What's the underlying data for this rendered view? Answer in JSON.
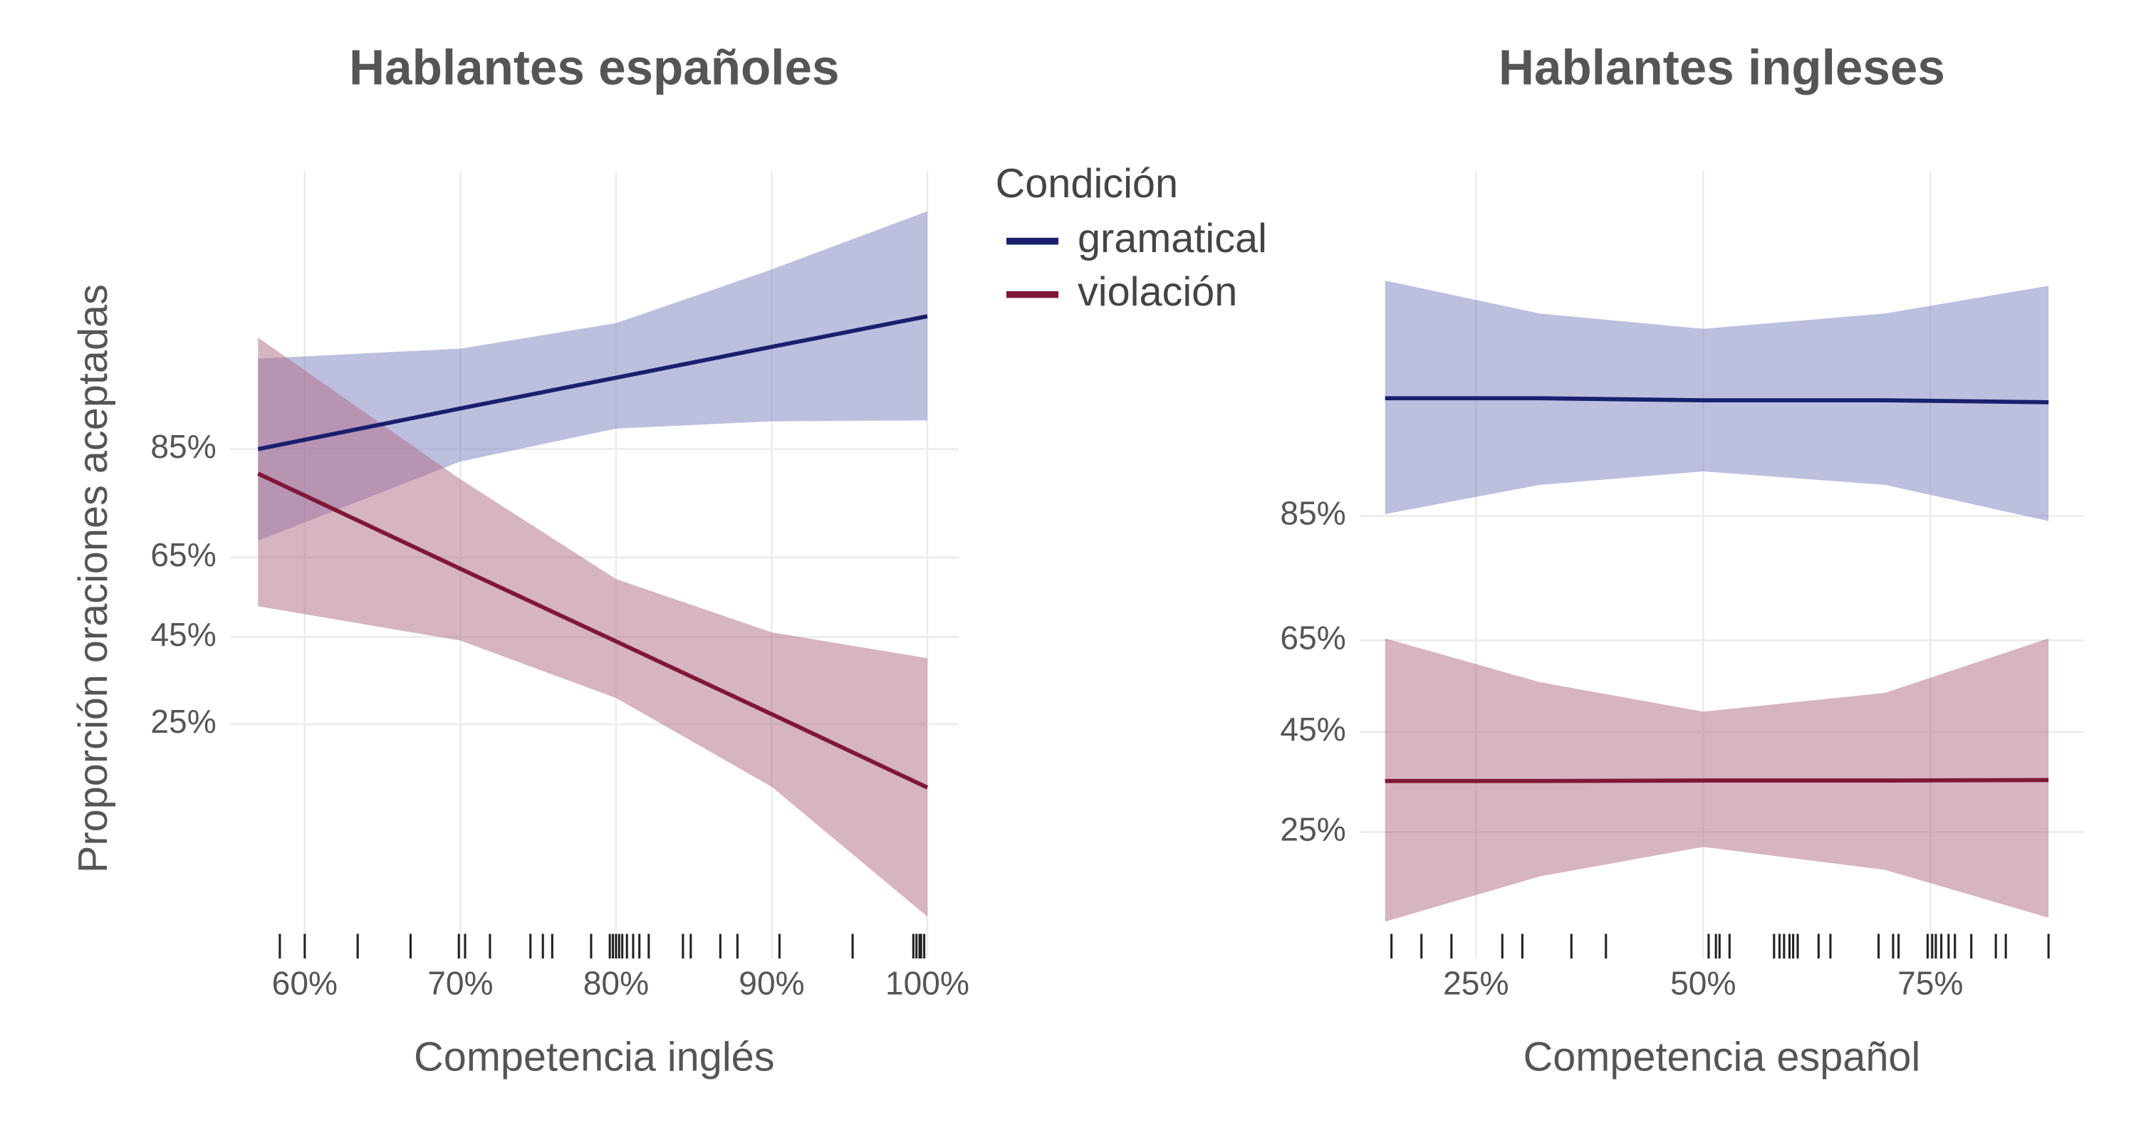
{
  "chart_data": [
    {
      "type": "line-band",
      "title": "Hablantes españoles",
      "xlabel": "Competencia inglés",
      "ylabel": "Proporción oraciones aceptadas",
      "legend_title": "Condición",
      "yscale": "logit",
      "grid": true,
      "x": [
        57,
        70,
        80,
        90,
        100
      ],
      "series": [
        {
          "name": "gramatical",
          "color": "#1a1f6e",
          "band_color": "#7b80c0",
          "values": [
            85,
            89.6,
            92.2,
            94.2,
            95.7
          ],
          "lower": [
            68.8,
            83.3,
            87.5,
            88.3,
            88.4
          ],
          "upper": [
            93.5,
            94.1,
            95.4,
            97.3,
            98.5
          ]
        },
        {
          "name": "violación",
          "color": "#7f1736",
          "band_color": "#b06a85",
          "values": [
            81.5,
            62.3,
            43.9,
            27,
            14.8
          ],
          "lower": [
            52.9,
            44.1,
            30.4,
            14.9,
            4.4
          ],
          "upper": [
            94.7,
            80.6,
            59.8,
            46.2,
            39.7
          ]
        }
      ],
      "rug": [
        58.4,
        60,
        63.4,
        66.8,
        69.9,
        70.3,
        71.9,
        74.5,
        75.3,
        75.9,
        78.4,
        79.6,
        79.8,
        80,
        80.2,
        80.4,
        80.7,
        81.1,
        81.5,
        82.1,
        84.3,
        84.8,
        86.7,
        87.8,
        90.5,
        95.2,
        99.1,
        99.3,
        99.5,
        99.6,
        99.8
      ],
      "xlim": [
        55.2,
        102
      ],
      "xticks": [
        {
          "value": 60,
          "label": "60%"
        },
        {
          "value": 70,
          "label": "70%"
        },
        {
          "value": 80,
          "label": "80%"
        },
        {
          "value": 90,
          "label": "90%"
        },
        {
          "value": 100,
          "label": "100%"
        }
      ],
      "ylim": [
        2.9,
        99
      ],
      "yticks": [
        {
          "value": 25,
          "label": "25%"
        },
        {
          "value": 45,
          "label": "45%"
        },
        {
          "value": 65,
          "label": "65%"
        },
        {
          "value": 85,
          "label": "85%"
        }
      ]
    },
    {
      "type": "line-band",
      "title": "Hablantes ingleses",
      "xlabel": "Competencia español",
      "yscale": "logit",
      "grid": true,
      "x": [
        15,
        32,
        50,
        70,
        88
      ],
      "series": [
        {
          "name": "gramatical",
          "color": "#1a1f6e",
          "band_color": "#7b80c0",
          "values": [
            94.2,
            94.2,
            94.1,
            94.1,
            94
          ],
          "lower": [
            85.2,
            88.2,
            89.4,
            88.2,
            84.4
          ],
          "upper": [
            97.9,
            97.2,
            96.8,
            97.2,
            97.8
          ]
        },
        {
          "name": "violación",
          "color": "#7f1736",
          "band_color": "#b06a85",
          "values": [
            34.5,
            34.5,
            34.6,
            34.6,
            34.7
          ],
          "lower": [
            13,
            18.3,
            22.6,
            19.2,
            13.4
          ],
          "upper": [
            65.4,
            56.1,
            49.5,
            53.7,
            65.4
          ]
        }
      ],
      "rug": [
        15.7,
        19,
        22.3,
        27.9,
        30.1,
        35.5,
        39.3,
        50.6,
        51.4,
        51.8,
        52.9,
        57.8,
        58.4,
        58.9,
        59.5,
        59.9,
        60.4,
        62.7,
        64,
        69.3,
        70.9,
        71.5,
        74.7,
        75.2,
        75.6,
        76.2,
        77,
        77.7,
        79.5,
        82.2,
        83.3,
        88
      ],
      "xlim": [
        12.2,
        91.9
      ],
      "xticks": [
        {
          "value": 25,
          "label": "25%"
        },
        {
          "value": 50,
          "label": "50%"
        },
        {
          "value": 75,
          "label": "75%"
        }
      ],
      "ylim": [
        9.7,
        99.2
      ],
      "yticks": [
        {
          "value": 25,
          "label": "25%"
        },
        {
          "value": 45,
          "label": "45%"
        },
        {
          "value": 65,
          "label": "65%"
        },
        {
          "value": 85,
          "label": "85%"
        }
      ]
    }
  ]
}
